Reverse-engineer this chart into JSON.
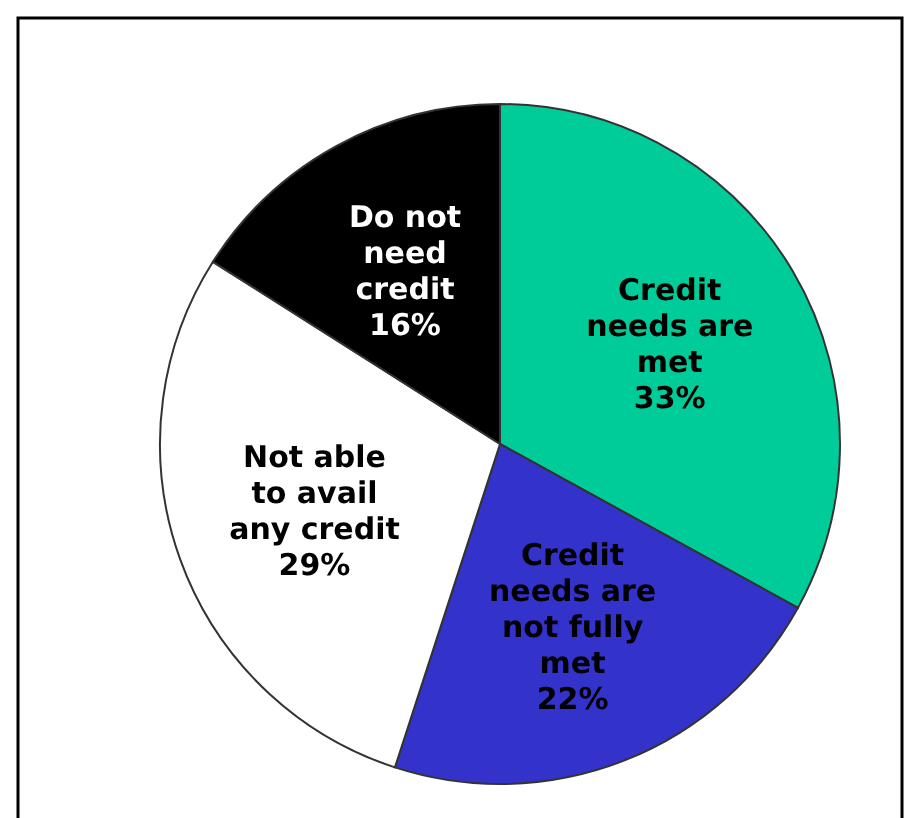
{
  "chart_data": {
    "type": "pie",
    "categories": [
      "Credit needs are met",
      "Credit needs are not fully met",
      "Not able to avail any credit",
      "Do not need credit"
    ],
    "values": [
      33,
      22,
      29,
      16
    ],
    "colors": [
      "#00cc99",
      "#3333cc",
      "#ffffff",
      "#000000"
    ],
    "value_labels": [
      "33%",
      "22%",
      "29%",
      "16%"
    ]
  }
}
